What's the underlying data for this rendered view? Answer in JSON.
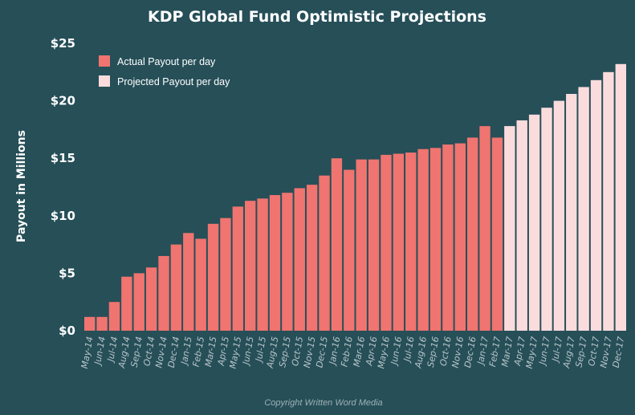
{
  "chart_data": {
    "type": "bar",
    "title": "KDP Global Fund Optimistic Projections",
    "ylabel": "Payout in Millions",
    "xlabel": "",
    "ylim": [
      0,
      25
    ],
    "yticks": [
      {
        "value": 0,
        "label": "$0"
      },
      {
        "value": 5,
        "label": "$5"
      },
      {
        "value": 10,
        "label": "$10"
      },
      {
        "value": 15,
        "label": "$15"
      },
      {
        "value": 20,
        "label": "$20"
      },
      {
        "value": 25,
        "label": "$25"
      }
    ],
    "grid": false,
    "legend_position": "top-left",
    "categories": [
      "May-14",
      "Jun-14",
      "Jul-14",
      "Aug-14",
      "Sep-14",
      "Oct-14",
      "Nov-14",
      "Dec-14",
      "Jan-15",
      "Feb-15",
      "Mar-15",
      "Apr-15",
      "May-15",
      "Jun-15",
      "Jul-15",
      "Aug-15",
      "Sep-15",
      "Oct-15",
      "Nov-15",
      "Dec-15",
      "Jan-16",
      "Feb-16",
      "Mar-16",
      "Apr-16",
      "May-16",
      "Jun-16",
      "Jul-16",
      "Aug-16",
      "Sep-16",
      "Oct-16",
      "Nov-16",
      "Dec-16",
      "Jan-17",
      "Feb-17",
      "Mar-17",
      "Apr-17",
      "May-17",
      "Jun-17",
      "Jul-17",
      "Aug-17",
      "Sep-17",
      "Oct-17",
      "Nov-17",
      "Dec-17"
    ],
    "series": [
      {
        "name": "Actual Payout per day",
        "color": "#f07470",
        "values": [
          1.2,
          1.2,
          2.5,
          4.7,
          5.0,
          5.5,
          6.5,
          7.5,
          8.5,
          8.0,
          9.3,
          9.8,
          10.8,
          11.3,
          11.5,
          11.8,
          12.0,
          12.4,
          12.7,
          13.5,
          15.0,
          14.0,
          14.9,
          14.9,
          15.3,
          15.4,
          15.5,
          15.8,
          15.9,
          16.2,
          16.3,
          16.8,
          17.8,
          16.8,
          null,
          null,
          null,
          null,
          null,
          null,
          null,
          null,
          null,
          null
        ]
      },
      {
        "name": "Projected Payout per day",
        "color": "#fbdcdd",
        "values": [
          null,
          null,
          null,
          null,
          null,
          null,
          null,
          null,
          null,
          null,
          null,
          null,
          null,
          null,
          null,
          null,
          null,
          null,
          null,
          null,
          null,
          null,
          null,
          null,
          null,
          null,
          null,
          null,
          null,
          null,
          null,
          null,
          null,
          null,
          17.8,
          18.3,
          18.8,
          19.4,
          20.0,
          20.6,
          21.2,
          21.8,
          22.5,
          23.2
        ]
      }
    ]
  },
  "footer": {
    "copyright": "Copyright Written Word Media"
  }
}
